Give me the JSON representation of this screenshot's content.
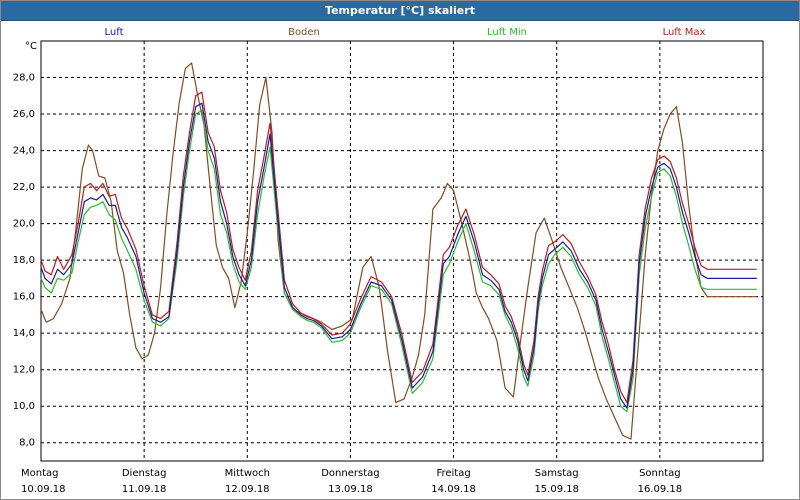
{
  "window": {
    "title": "Temperatur [°C] skaliert"
  },
  "chart_data": {
    "type": "line",
    "title": "Temperatur [°C] skaliert",
    "ylabel": "°C",
    "ylim": [
      7.0,
      30.0
    ],
    "yticks": [
      "8,0",
      "10,0",
      "12,0",
      "14,0",
      "16,0",
      "18,0",
      "20,0",
      "22,0",
      "24,0",
      "26,0",
      "28,0"
    ],
    "yticks_values": [
      8,
      10,
      12,
      14,
      16,
      18,
      20,
      22,
      24,
      26,
      28
    ],
    "xlim": [
      0,
      7
    ],
    "xticks": [
      {
        "day": "Montag",
        "date": "10.09.18"
      },
      {
        "day": "Dienstag",
        "date": "11.09.18"
      },
      {
        "day": "Mittwoch",
        "date": "12.09.18"
      },
      {
        "day": "Donnerstag",
        "date": "13.09.18"
      },
      {
        "day": "Freitag",
        "date": "14.09.18"
      },
      {
        "day": "Samstag",
        "date": "15.09.18"
      },
      {
        "day": "Sonntag",
        "date": "16.09.18"
      }
    ],
    "grid": true,
    "legend_position": "top",
    "series": [
      {
        "name": "Luft",
        "color": "#1a1aa8",
        "x": [
          0,
          0.04,
          0.1,
          0.16,
          0.22,
          0.3,
          0.36,
          0.42,
          0.48,
          0.54,
          0.6,
          0.66,
          0.72,
          0.78,
          0.84,
          0.92,
          1.0,
          1.08,
          1.16,
          1.24,
          1.32,
          1.38,
          1.44,
          1.5,
          1.56,
          1.62,
          1.68,
          1.74,
          1.8,
          1.86,
          1.92,
          1.98,
          2.04,
          2.1,
          2.16,
          2.22,
          2.3,
          2.36,
          2.44,
          2.52,
          2.58,
          2.64,
          2.72,
          2.82,
          2.92,
          3.0,
          3.1,
          3.2,
          3.3,
          3.4,
          3.5,
          3.6,
          3.7,
          3.8,
          3.9,
          3.96,
          4.04,
          4.12,
          4.2,
          4.28,
          4.36,
          4.44,
          4.5,
          4.56,
          4.62,
          4.68,
          4.72,
          4.78,
          4.82,
          4.86,
          4.92,
          4.98,
          5.06,
          5.14,
          5.22,
          5.3,
          5.38,
          5.44,
          5.5,
          5.56,
          5.62,
          5.68,
          5.74,
          5.8,
          5.86,
          5.92,
          5.98,
          6.04,
          6.1,
          6.16,
          6.22,
          6.28,
          6.34,
          6.4,
          6.46,
          6.52,
          6.58,
          6.64,
          6.7,
          6.76,
          6.82,
          6.88,
          6.94
        ],
        "y": [
          17.6,
          17.0,
          16.7,
          17.5,
          17.2,
          17.8,
          19.5,
          21.2,
          21.4,
          21.3,
          21.6,
          21.0,
          21.0,
          19.8,
          19.2,
          18.2,
          16.2,
          14.8,
          14.6,
          14.9,
          18.5,
          22.0,
          24.5,
          26.4,
          26.6,
          24.5,
          23.6,
          21.2,
          20.0,
          18.2,
          17.2,
          16.6,
          18.0,
          21.2,
          23.0,
          24.9,
          20.0,
          16.5,
          15.4,
          15.0,
          14.8,
          14.7,
          14.4,
          13.7,
          13.8,
          14.2,
          15.6,
          16.8,
          16.6,
          15.8,
          13.6,
          11.0,
          11.6,
          13.0,
          17.8,
          18.2,
          19.4,
          20.4,
          19.0,
          17.2,
          16.9,
          16.4,
          15.2,
          14.6,
          13.6,
          12.0,
          11.4,
          13.2,
          15.6,
          17.0,
          18.3,
          18.6,
          19.0,
          18.5,
          17.5,
          16.8,
          15.8,
          14.2,
          13.0,
          11.7,
          10.4,
          9.9,
          12.0,
          17.8,
          20.4,
          22.0,
          23.1,
          23.3,
          23.0,
          22.0,
          20.6,
          19.5,
          18.2,
          17.2,
          17.0,
          17.0,
          17.0,
          17.0,
          17.0,
          17.0,
          17.0,
          17.0,
          17.0
        ]
      },
      {
        "name": "Boden",
        "color": "#8b4a1e",
        "x": [
          0,
          0.05,
          0.12,
          0.2,
          0.28,
          0.34,
          0.4,
          0.46,
          0.5,
          0.56,
          0.62,
          0.68,
          0.74,
          0.8,
          0.86,
          0.92,
          0.98,
          1.04,
          1.1,
          1.16,
          1.22,
          1.28,
          1.34,
          1.4,
          1.46,
          1.52,
          1.58,
          1.64,
          1.7,
          1.76,
          1.82,
          1.88,
          1.94,
          2.0,
          2.06,
          2.12,
          2.18,
          2.24,
          2.3,
          2.36,
          2.42,
          2.48,
          2.56,
          2.64,
          2.72,
          2.82,
          2.92,
          3.02,
          3.12,
          3.2,
          3.28,
          3.36,
          3.44,
          3.52,
          3.6,
          3.66,
          3.72,
          3.8,
          3.88,
          3.94,
          4.0,
          4.08,
          4.16,
          4.22,
          4.28,
          4.34,
          4.42,
          4.5,
          4.58,
          4.64,
          4.72,
          4.8,
          4.88,
          4.96,
          5.04,
          5.12,
          5.2,
          5.28,
          5.34,
          5.4,
          5.48,
          5.56,
          5.64,
          5.72,
          5.8,
          5.86,
          5.92,
          5.98,
          6.04,
          6.1,
          6.16,
          6.22,
          6.28,
          6.34,
          6.4,
          6.46,
          6.52,
          6.58,
          6.64,
          6.7,
          6.76,
          6.82,
          6.88,
          6.94
        ],
        "y": [
          15.3,
          14.6,
          14.8,
          15.6,
          17.0,
          19.8,
          23.0,
          24.3,
          24.0,
          22.6,
          22.5,
          21.2,
          18.5,
          17.3,
          15.0,
          13.2,
          12.6,
          12.8,
          14.0,
          16.5,
          20.5,
          23.8,
          26.6,
          28.5,
          28.8,
          27.0,
          25.4,
          22.0,
          18.8,
          17.6,
          17.0,
          15.4,
          16.8,
          19.5,
          22.8,
          26.5,
          28.0,
          25.0,
          19.0,
          16.2,
          15.5,
          15.2,
          15.0,
          14.8,
          14.6,
          14.2,
          14.4,
          14.8,
          17.6,
          18.2,
          16.5,
          13.0,
          10.2,
          10.4,
          11.6,
          12.8,
          15.0,
          20.8,
          21.4,
          22.2,
          21.8,
          20.0,
          18.0,
          16.2,
          15.4,
          14.8,
          13.6,
          11.0,
          10.5,
          13.2,
          16.5,
          19.5,
          20.3,
          19.0,
          17.6,
          16.5,
          15.4,
          14.0,
          12.8,
          11.6,
          10.4,
          9.4,
          8.4,
          8.2,
          14.0,
          18.4,
          21.6,
          24.0,
          25.2,
          26.0,
          26.4,
          24.4,
          21.0,
          18.4,
          16.5,
          16.0,
          16.0,
          16.0,
          16.0,
          16.0,
          16.0,
          16.0,
          16.0,
          16.0
        ]
      },
      {
        "name": "Luft Min",
        "color": "#22c422",
        "x": [
          0,
          0.04,
          0.1,
          0.16,
          0.22,
          0.3,
          0.36,
          0.42,
          0.48,
          0.54,
          0.6,
          0.66,
          0.72,
          0.78,
          0.84,
          0.92,
          1.0,
          1.08,
          1.16,
          1.24,
          1.32,
          1.38,
          1.44,
          1.5,
          1.56,
          1.62,
          1.68,
          1.74,
          1.8,
          1.86,
          1.92,
          1.98,
          2.04,
          2.1,
          2.16,
          2.22,
          2.3,
          2.36,
          2.44,
          2.52,
          2.58,
          2.64,
          2.72,
          2.82,
          2.92,
          3.0,
          3.1,
          3.2,
          3.3,
          3.4,
          3.5,
          3.6,
          3.7,
          3.8,
          3.9,
          3.96,
          4.04,
          4.12,
          4.2,
          4.28,
          4.36,
          4.44,
          4.5,
          4.56,
          4.62,
          4.68,
          4.72,
          4.78,
          4.82,
          4.86,
          4.92,
          4.98,
          5.06,
          5.14,
          5.22,
          5.3,
          5.38,
          5.44,
          5.5,
          5.56,
          5.62,
          5.68,
          5.74,
          5.8,
          5.86,
          5.92,
          5.98,
          6.04,
          6.1,
          6.16,
          6.22,
          6.28,
          6.34,
          6.4,
          6.46,
          6.52,
          6.58,
          6.64,
          6.7,
          6.76,
          6.82,
          6.88,
          6.94
        ],
        "y": [
          17.0,
          16.5,
          16.2,
          17.0,
          16.9,
          17.3,
          19.0,
          20.5,
          20.9,
          21.0,
          21.2,
          20.5,
          20.2,
          19.2,
          18.5,
          17.5,
          15.8,
          14.6,
          14.4,
          14.8,
          18.0,
          21.5,
          24.0,
          26.0,
          26.2,
          24.0,
          23.0,
          20.5,
          19.5,
          17.8,
          16.8,
          16.4,
          17.6,
          20.5,
          22.5,
          24.2,
          19.5,
          16.2,
          15.3,
          14.9,
          14.7,
          14.6,
          14.3,
          13.5,
          13.6,
          14.0,
          15.4,
          16.6,
          16.4,
          15.6,
          13.3,
          10.7,
          11.3,
          12.6,
          17.2,
          17.8,
          19.0,
          20.0,
          18.5,
          16.8,
          16.6,
          16.1,
          15.0,
          14.3,
          13.2,
          11.6,
          11.1,
          12.8,
          15.2,
          16.6,
          17.8,
          18.3,
          18.7,
          18.2,
          17.2,
          16.5,
          15.5,
          13.8,
          12.6,
          11.3,
          10.0,
          9.7,
          11.5,
          17.2,
          19.8,
          21.5,
          22.8,
          23.0,
          22.6,
          21.5,
          20.0,
          18.8,
          17.5,
          16.5,
          16.4,
          16.4,
          16.4,
          16.4,
          16.4,
          16.4,
          16.4,
          16.4,
          16.4
        ]
      },
      {
        "name": "Luft Max",
        "color": "#c41a1a",
        "x": [
          0,
          0.04,
          0.1,
          0.16,
          0.22,
          0.3,
          0.36,
          0.42,
          0.48,
          0.54,
          0.6,
          0.66,
          0.72,
          0.78,
          0.84,
          0.92,
          1.0,
          1.08,
          1.16,
          1.24,
          1.32,
          1.38,
          1.44,
          1.5,
          1.56,
          1.62,
          1.68,
          1.74,
          1.8,
          1.86,
          1.92,
          1.98,
          2.04,
          2.1,
          2.16,
          2.22,
          2.3,
          2.36,
          2.44,
          2.52,
          2.58,
          2.64,
          2.72,
          2.82,
          2.92,
          3.0,
          3.1,
          3.2,
          3.3,
          3.4,
          3.5,
          3.6,
          3.7,
          3.8,
          3.9,
          3.96,
          4.04,
          4.12,
          4.2,
          4.28,
          4.36,
          4.44,
          4.5,
          4.56,
          4.62,
          4.68,
          4.72,
          4.78,
          4.82,
          4.86,
          4.92,
          4.98,
          5.06,
          5.14,
          5.22,
          5.3,
          5.38,
          5.44,
          5.5,
          5.56,
          5.62,
          5.68,
          5.74,
          5.8,
          5.86,
          5.92,
          5.98,
          6.04,
          6.1,
          6.16,
          6.22,
          6.28,
          6.34,
          6.4,
          6.46,
          6.52,
          6.58,
          6.64,
          6.7,
          6.76,
          6.82,
          6.88,
          6.94
        ],
        "y": [
          18.0,
          17.4,
          17.2,
          18.2,
          17.5,
          18.3,
          20.0,
          22.0,
          22.2,
          21.8,
          22.2,
          21.5,
          21.6,
          20.3,
          19.7,
          18.6,
          16.6,
          15.0,
          14.8,
          15.2,
          19.0,
          22.6,
          25.0,
          27.0,
          27.2,
          25.0,
          24.2,
          21.8,
          20.6,
          18.6,
          17.6,
          16.9,
          18.5,
          21.8,
          23.6,
          25.5,
          20.6,
          16.9,
          15.6,
          15.1,
          14.9,
          14.8,
          14.5,
          13.9,
          14.0,
          14.5,
          15.9,
          17.1,
          16.8,
          16.0,
          13.9,
          11.3,
          11.9,
          13.4,
          18.3,
          18.7,
          19.9,
          20.8,
          19.4,
          17.6,
          17.2,
          16.7,
          15.5,
          14.9,
          13.9,
          12.3,
          11.7,
          13.6,
          16.0,
          17.4,
          18.8,
          19.0,
          19.4,
          18.9,
          17.9,
          17.1,
          16.1,
          14.6,
          13.4,
          12.0,
          10.8,
          10.2,
          12.5,
          18.3,
          20.9,
          22.5,
          23.5,
          23.7,
          23.4,
          22.5,
          21.1,
          20.0,
          18.7,
          17.7,
          17.5,
          17.5,
          17.5,
          17.5,
          17.5,
          17.5,
          17.5,
          17.5,
          17.5
        ]
      }
    ]
  }
}
